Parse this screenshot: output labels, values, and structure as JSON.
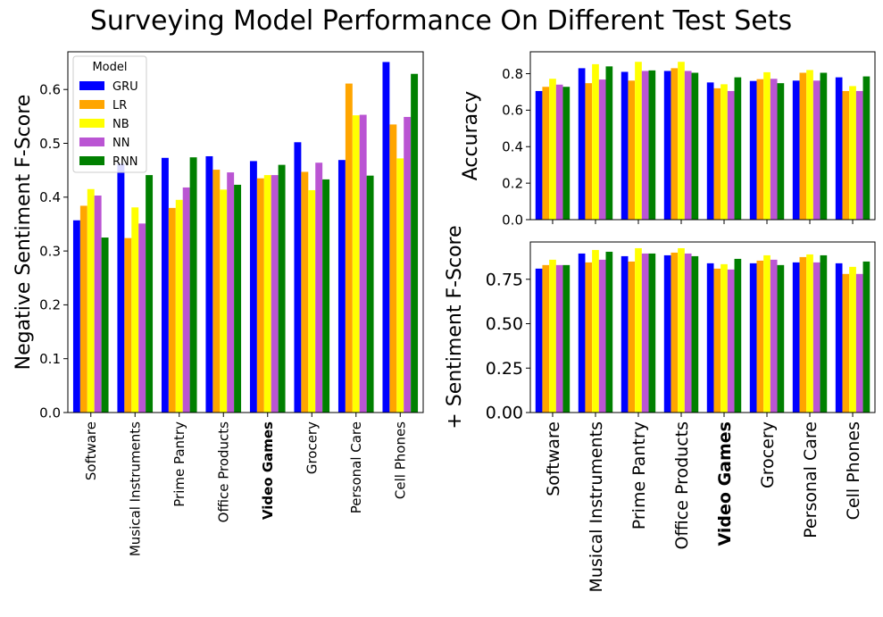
{
  "figure": {
    "title": "Surveying Model Performance On Different Test Sets"
  },
  "legend": {
    "title": "Model",
    "placement": "top-left of left panel"
  },
  "colors": {
    "GRU": "#0000ff",
    "LR": "#ffa500",
    "NB": "#ffff00",
    "NN": "#ba55d3",
    "RNN": "#008000"
  },
  "chart_data": [
    {
      "type": "bar",
      "panel": "left",
      "title": "",
      "xlabel": "",
      "ylabel": "Negative Sentiment F-Score",
      "ylim": [
        0,
        0.67
      ],
      "yticks": [
        "0.0",
        "0.1",
        "0.2",
        "0.3",
        "0.4",
        "0.5",
        "0.6"
      ],
      "highlighted_category": "Video Games",
      "grid": false,
      "legend_position": "top-left",
      "categories": [
        "Software",
        "Musical Instruments",
        "Prime Pantry",
        "Office Products",
        "Video Games",
        "Grocery",
        "Personal Care",
        "Cell Phones"
      ],
      "series": [
        {
          "name": "GRU",
          "values": [
            0.357,
            0.462,
            0.473,
            0.476,
            0.467,
            0.502,
            0.469,
            0.651
          ]
        },
        {
          "name": "LR",
          "values": [
            0.384,
            0.324,
            0.38,
            0.451,
            0.435,
            0.447,
            0.611,
            0.535
          ]
        },
        {
          "name": "NB",
          "values": [
            0.415,
            0.381,
            0.395,
            0.414,
            0.441,
            0.413,
            0.552,
            0.472
          ]
        },
        {
          "name": "NN",
          "values": [
            0.403,
            0.351,
            0.418,
            0.446,
            0.441,
            0.464,
            0.553,
            0.549
          ]
        },
        {
          "name": "RNN",
          "values": [
            0.325,
            0.441,
            0.474,
            0.423,
            0.46,
            0.433,
            0.44,
            0.629
          ]
        }
      ]
    },
    {
      "type": "bar",
      "panel": "top-right",
      "title": "",
      "xlabel": "",
      "ylabel": "Accuracy",
      "ylim": [
        0,
        0.92
      ],
      "yticks": [
        "0.0",
        "0.2",
        "0.4",
        "0.6",
        "0.8"
      ],
      "grid": false,
      "categories": [
        "Software",
        "Musical Instruments",
        "Prime Pantry",
        "Office Products",
        "Video Games",
        "Grocery",
        "Personal Care",
        "Cell Phones"
      ],
      "series": [
        {
          "name": "GRU",
          "values": [
            0.705,
            0.83,
            0.81,
            0.815,
            0.752,
            0.76,
            0.762,
            0.78
          ]
        },
        {
          "name": "LR",
          "values": [
            0.728,
            0.748,
            0.762,
            0.83,
            0.72,
            0.77,
            0.805,
            0.705
          ]
        },
        {
          "name": "NB",
          "values": [
            0.772,
            0.852,
            0.865,
            0.865,
            0.742,
            0.808,
            0.82,
            0.732
          ]
        },
        {
          "name": "NN",
          "values": [
            0.74,
            0.768,
            0.815,
            0.815,
            0.705,
            0.772,
            0.762,
            0.705
          ]
        },
        {
          "name": "RNN",
          "values": [
            0.728,
            0.84,
            0.818,
            0.805,
            0.78,
            0.748,
            0.805,
            0.785
          ]
        }
      ]
    },
    {
      "type": "bar",
      "panel": "bottom-right",
      "title": "",
      "xlabel": "",
      "ylabel": "+ Sentiment F-Score",
      "ylim": [
        0,
        0.96
      ],
      "yticks": [
        "0.00",
        "0.25",
        "0.50",
        "0.75"
      ],
      "highlighted_category": "Video Games",
      "grid": false,
      "categories": [
        "Software",
        "Musical Instruments",
        "Prime Pantry",
        "Office Products",
        "Video Games",
        "Grocery",
        "Personal Care",
        "Cell Phones"
      ],
      "series": [
        {
          "name": "GRU",
          "values": [
            0.81,
            0.895,
            0.88,
            0.885,
            0.84,
            0.84,
            0.845,
            0.84
          ]
        },
        {
          "name": "LR",
          "values": [
            0.83,
            0.845,
            0.85,
            0.9,
            0.81,
            0.855,
            0.875,
            0.78
          ]
        },
        {
          "name": "NB",
          "values": [
            0.86,
            0.915,
            0.925,
            0.925,
            0.835,
            0.885,
            0.89,
            0.82
          ]
        },
        {
          "name": "NN",
          "values": [
            0.83,
            0.86,
            0.895,
            0.895,
            0.805,
            0.86,
            0.845,
            0.78
          ]
        },
        {
          "name": "RNN",
          "values": [
            0.83,
            0.905,
            0.895,
            0.88,
            0.865,
            0.83,
            0.885,
            0.85
          ]
        }
      ]
    }
  ]
}
